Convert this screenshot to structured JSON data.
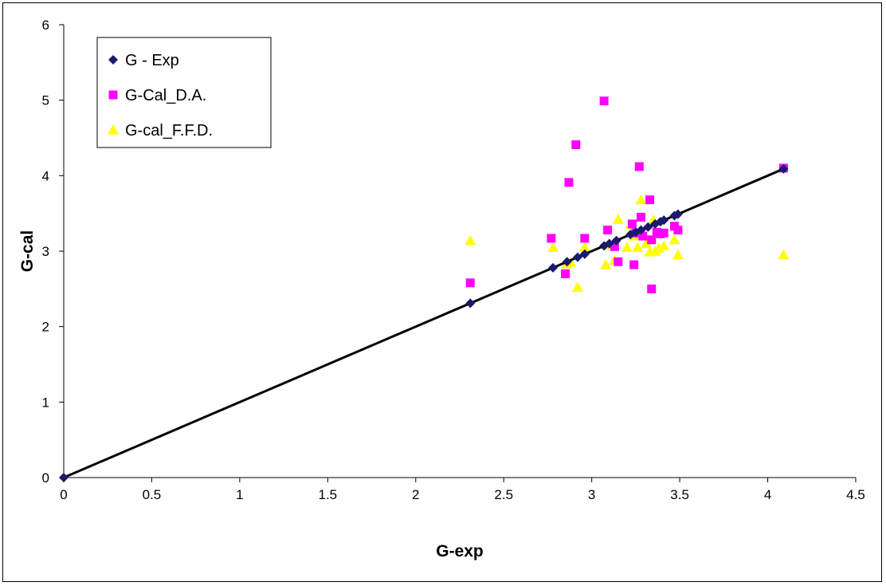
{
  "chart_data": {
    "type": "scatter",
    "title": "",
    "xlabel": "G-exp",
    "ylabel": "G-cal",
    "xlim": [
      0,
      4.5
    ],
    "ylim": [
      0,
      6
    ],
    "xticks": [
      "0",
      "0.5",
      "1",
      "1.5",
      "2",
      "2.5",
      "3",
      "3.5",
      "4",
      "4.5"
    ],
    "yticks": [
      "0",
      "1",
      "2",
      "3",
      "4",
      "5",
      "6"
    ],
    "grid": false,
    "legend_position": "top-left",
    "series": [
      {
        "name": "G - Exp",
        "marker": "diamond",
        "color": "#1a1a6e",
        "line": true,
        "points": [
          [
            0,
            0
          ],
          [
            2.31,
            2.31
          ],
          [
            2.78,
            2.78
          ],
          [
            2.86,
            2.86
          ],
          [
            2.92,
            2.92
          ],
          [
            2.96,
            2.96
          ],
          [
            3.07,
            3.07
          ],
          [
            3.1,
            3.1
          ],
          [
            3.14,
            3.14
          ],
          [
            3.22,
            3.22
          ],
          [
            3.25,
            3.25
          ],
          [
            3.28,
            3.28
          ],
          [
            3.32,
            3.32
          ],
          [
            3.36,
            3.36
          ],
          [
            3.39,
            3.39
          ],
          [
            3.41,
            3.41
          ],
          [
            3.47,
            3.47
          ],
          [
            3.49,
            3.49
          ],
          [
            4.09,
            4.09
          ]
        ]
      },
      {
        "name": "G-Cal_D.A.",
        "marker": "square",
        "color": "#ff00ff",
        "line": false,
        "points": [
          [
            2.31,
            2.58
          ],
          [
            2.77,
            3.17
          ],
          [
            2.85,
            2.7
          ],
          [
            2.87,
            3.91
          ],
          [
            2.91,
            4.41
          ],
          [
            2.96,
            3.17
          ],
          [
            3.07,
            4.99
          ],
          [
            3.09,
            3.28
          ],
          [
            3.13,
            3.06
          ],
          [
            3.15,
            2.86
          ],
          [
            3.23,
            3.36
          ],
          [
            3.24,
            2.82
          ],
          [
            3.25,
            3.24
          ],
          [
            3.27,
            4.12
          ],
          [
            3.28,
            3.45
          ],
          [
            3.29,
            3.2
          ],
          [
            3.33,
            3.68
          ],
          [
            3.34,
            3.15
          ],
          [
            3.34,
            2.5
          ],
          [
            3.37,
            3.25
          ],
          [
            3.39,
            3.23
          ],
          [
            3.41,
            3.24
          ],
          [
            3.47,
            3.33
          ],
          [
            3.49,
            3.28
          ],
          [
            4.09,
            4.1
          ]
        ]
      },
      {
        "name": "G-cal_F.F.D.",
        "marker": "triangle",
        "color": "#ffff00",
        "line": false,
        "points": [
          [
            2.31,
            3.14
          ],
          [
            2.78,
            3.05
          ],
          [
            2.86,
            2.83
          ],
          [
            2.88,
            2.85
          ],
          [
            2.92,
            2.52
          ],
          [
            2.96,
            3.05
          ],
          [
            3.08,
            2.82
          ],
          [
            3.1,
            3.08
          ],
          [
            3.13,
            2.88
          ],
          [
            3.15,
            3.42
          ],
          [
            3.2,
            3.05
          ],
          [
            3.22,
            3.35
          ],
          [
            3.24,
            3.2
          ],
          [
            3.26,
            3.05
          ],
          [
            3.28,
            3.68
          ],
          [
            3.29,
            3.22
          ],
          [
            3.31,
            3.1
          ],
          [
            3.33,
            2.99
          ],
          [
            3.35,
            3.41
          ],
          [
            3.36,
            3.0
          ],
          [
            3.38,
            3.04
          ],
          [
            3.41,
            3.07
          ],
          [
            3.47,
            3.15
          ],
          [
            3.49,
            2.95
          ],
          [
            4.09,
            2.95
          ]
        ]
      }
    ]
  }
}
